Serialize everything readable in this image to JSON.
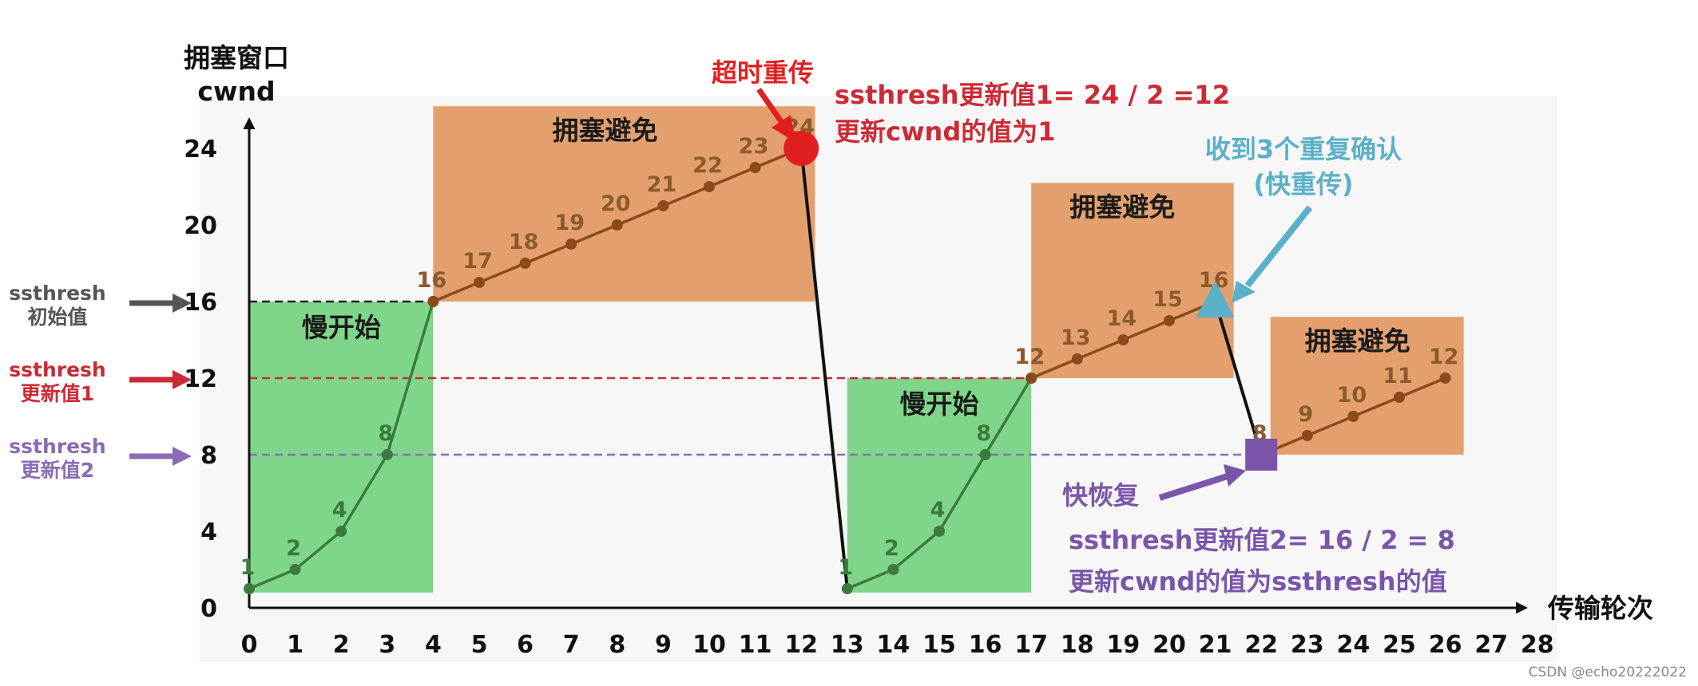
{
  "chart_data": {
    "type": "line",
    "title": "",
    "xlabel": "传输轮次",
    "ylabel_line1": "拥塞窗口",
    "ylabel_line2": "cwnd",
    "xlim": [
      0,
      28
    ],
    "ylim": [
      0,
      26
    ],
    "x_ticks": [
      "0",
      "1",
      "2",
      "3",
      "4",
      "5",
      "6",
      "7",
      "8",
      "9",
      "10",
      "11",
      "12",
      "13",
      "14",
      "15",
      "16",
      "17",
      "18",
      "19",
      "20",
      "21",
      "22",
      "23",
      "24",
      "25",
      "26",
      "27",
      "28"
    ],
    "y_ticks": [
      "0",
      "4",
      "8",
      "12",
      "16",
      "20",
      "24"
    ],
    "y_tick_values": [
      0,
      4,
      8,
      12,
      16,
      20,
      24
    ],
    "series": [
      {
        "segment": "slow-start-1",
        "color": "#3d7a3d",
        "x": [
          0,
          1,
          2,
          3,
          4
        ],
        "y": [
          1,
          2,
          4,
          8,
          16
        ],
        "labels": [
          "1",
          "2",
          "4",
          "8",
          "16"
        ]
      },
      {
        "segment": "congestion-avoidance-1",
        "color": "#8b4a1c",
        "x": [
          4,
          5,
          6,
          7,
          8,
          9,
          10,
          11,
          12
        ],
        "y": [
          16,
          17,
          18,
          19,
          20,
          21,
          22,
          23,
          24
        ],
        "labels": [
          "16",
          "17",
          "18",
          "19",
          "20",
          "21",
          "22",
          "23",
          "24"
        ]
      },
      {
        "segment": "timeout-drop",
        "color": "#111111",
        "x": [
          12,
          13
        ],
        "y": [
          24,
          1
        ],
        "labels": []
      },
      {
        "segment": "slow-start-2",
        "color": "#3d7a3d",
        "x": [
          13,
          14,
          15,
          16,
          17
        ],
        "y": [
          1,
          2,
          4,
          8,
          12
        ],
        "labels": [
          "1",
          "2",
          "4",
          "8",
          "12"
        ]
      },
      {
        "segment": "congestion-avoidance-2",
        "color": "#8b4a1c",
        "x": [
          17,
          18,
          19,
          20,
          21
        ],
        "y": [
          12,
          13,
          14,
          15,
          16
        ],
        "labels": [
          "12",
          "13",
          "14",
          "15",
          "16"
        ]
      },
      {
        "segment": "fast-recovery-drop",
        "color": "#111111",
        "x": [
          21,
          22
        ],
        "y": [
          16,
          8
        ],
        "labels": []
      },
      {
        "segment": "congestion-avoidance-3",
        "color": "#8b4a1c",
        "x": [
          22,
          23,
          24,
          25,
          26
        ],
        "y": [
          8,
          9,
          10,
          11,
          12
        ],
        "labels": [
          "8",
          "9",
          "10",
          "11",
          "12"
        ]
      }
    ],
    "regions": [
      {
        "label": "慢开始",
        "x": [
          0,
          4
        ],
        "y": [
          0.8,
          16
        ],
        "color": "#7fd68a"
      },
      {
        "label": "拥塞避免",
        "x": [
          4,
          12.3
        ],
        "y": [
          16,
          26.2
        ],
        "color": "#e3a06e"
      },
      {
        "label": "慢开始",
        "x": [
          13,
          17
        ],
        "y": [
          0.8,
          12
        ],
        "color": "#7fd68a"
      },
      {
        "label": "拥塞避免",
        "x": [
          17,
          21.4
        ],
        "y": [
          12,
          22.2
        ],
        "color": "#e3a06e"
      },
      {
        "label": "拥塞避免",
        "x": [
          22.2,
          26.4
        ],
        "y": [
          8,
          15.2
        ],
        "color": "#e3a06e"
      }
    ],
    "threshold_lines": [
      {
        "name": "ssthresh 初始值",
        "y": 16,
        "x_end": 4,
        "color": "#222222"
      },
      {
        "name": "ssthresh 更新值1",
        "y": 12,
        "x_end": 17,
        "color": "#cc2a36"
      },
      {
        "name": "ssthresh 更新值2",
        "y": 8,
        "x_end": 22,
        "color": "#8a6bb6"
      }
    ],
    "events": [
      {
        "name": "超时重传",
        "x": 12,
        "y": 24,
        "marker": "circle",
        "color": "#e02020"
      },
      {
        "name": "收到3个重复确认(快重传)",
        "x": 21,
        "y": 16,
        "marker": "triangle",
        "color": "#5ab0c8"
      },
      {
        "name": "快恢复",
        "x": 22,
        "y": 8,
        "marker": "square",
        "color": "#7a55aa"
      }
    ],
    "legend": "left-side labels",
    "grid": false
  },
  "annotations": {
    "side_labels": [
      {
        "line1": "ssthresh",
        "line2": "初始值",
        "color": "#555555"
      },
      {
        "line1": "ssthresh",
        "line2": "更新值1",
        "color": "#cc2a36"
      },
      {
        "line1": "ssthresh",
        "line2": "更新值2",
        "color": "#8a6bb6"
      }
    ],
    "timeout_title": "超时重传",
    "timeout_line1": "ssthresh更新值1= 24 / 2 =12",
    "timeout_line2": "更新cwnd的值为1",
    "fast_retransmit_line1": "收到3个重复确认",
    "fast_retransmit_line2": "(快重传)",
    "fast_recovery_title": "快恢复",
    "fast_recovery_line1": "ssthresh更新值2= 16 / 2 = 8",
    "fast_recovery_line2": "更新cwnd的值为ssthresh的值",
    "colors": {
      "red": "#e02020",
      "teal": "#5ab0c8",
      "purple": "#7a55aa",
      "green": "#7fd68a",
      "orange": "#e3a06e"
    }
  },
  "watermark": "CSDN @echo20222022"
}
